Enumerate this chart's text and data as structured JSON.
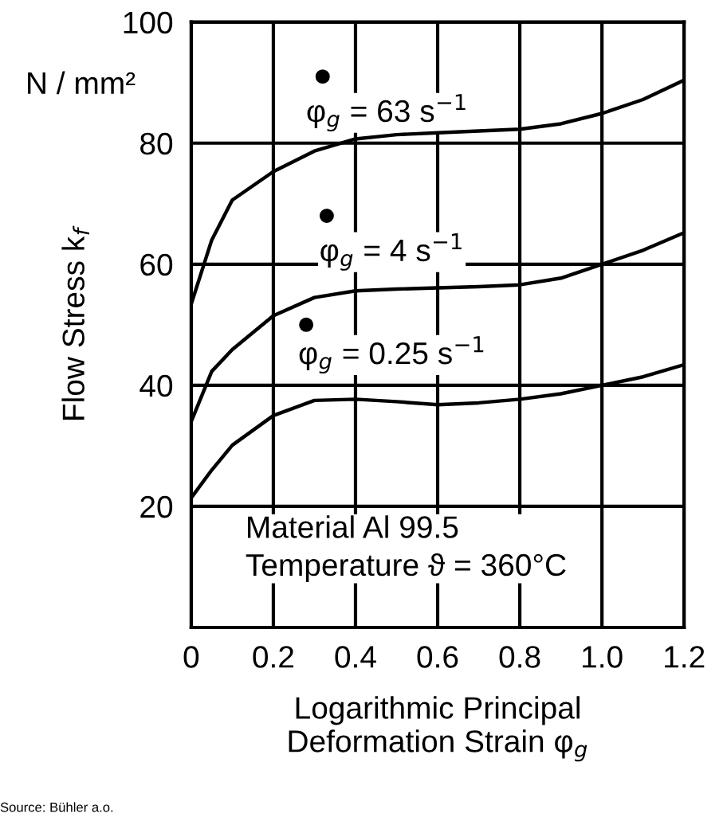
{
  "chart_data": {
    "type": "line",
    "ylabel": "Flow Stress k$_{f}$",
    "xlabel": "Logarithmic Principal\nDeformation Strain φ$_{g}$",
    "x": [
      0,
      0.05,
      0.1,
      0.2,
      0.3,
      0.4,
      0.5,
      0.6,
      0.7,
      0.8,
      0.9,
      1.0,
      1.1,
      1.2
    ],
    "series": [
      {
        "color": "#000000",
        "values": [
          53.4,
          64,
          70.6,
          75.3,
          78.7,
          80.7,
          81.4,
          81.7,
          82,
          82.3,
          83.2,
          84.9,
          87.2,
          90.4
        ]
      },
      {
        "color": "#000000",
        "values": [
          34,
          42.3,
          45.9,
          51.5,
          54.5,
          55.6,
          55.9,
          56.1,
          56.3,
          56.6,
          57.7,
          60,
          62.3,
          65.2
        ]
      },
      {
        "color": "#000000",
        "values": [
          21.4,
          26,
          30.1,
          35,
          37.5,
          37.7,
          37.3,
          36.8,
          37.1,
          37.7,
          38.6,
          40,
          41.4,
          43.4
        ]
      },
      {
        "type": "scatter",
        "color": "#000000",
        "marker": "circle",
        "x": [
          0.32,
          0.33,
          0.28
        ],
        "values": [
          91,
          68,
          50
        ]
      }
    ],
    "annotations": [
      "φ$_{g}$ = 63 s$^{−1}$",
      "φ$_{g}$ = 4 s$^{−1}$",
      "φ$_{g}$ = 0.25 s$^{−1}$",
      "N / mm²",
      "Material Al 99.5\nTemperature ϑ = 360°C",
      "Source: Bühler a.o."
    ],
    "xlim": [
      0,
      1.2
    ],
    "xticks": [
      0,
      0.2,
      0.4,
      0.6,
      0.8,
      {
        "value": 1,
        "label": "1.0"
      },
      1.2
    ],
    "ylim": [
      0,
      100
    ],
    "yticks": [
      20,
      40,
      60,
      80,
      100
    ],
    "grid": true,
    "line_style": "solid"
  }
}
